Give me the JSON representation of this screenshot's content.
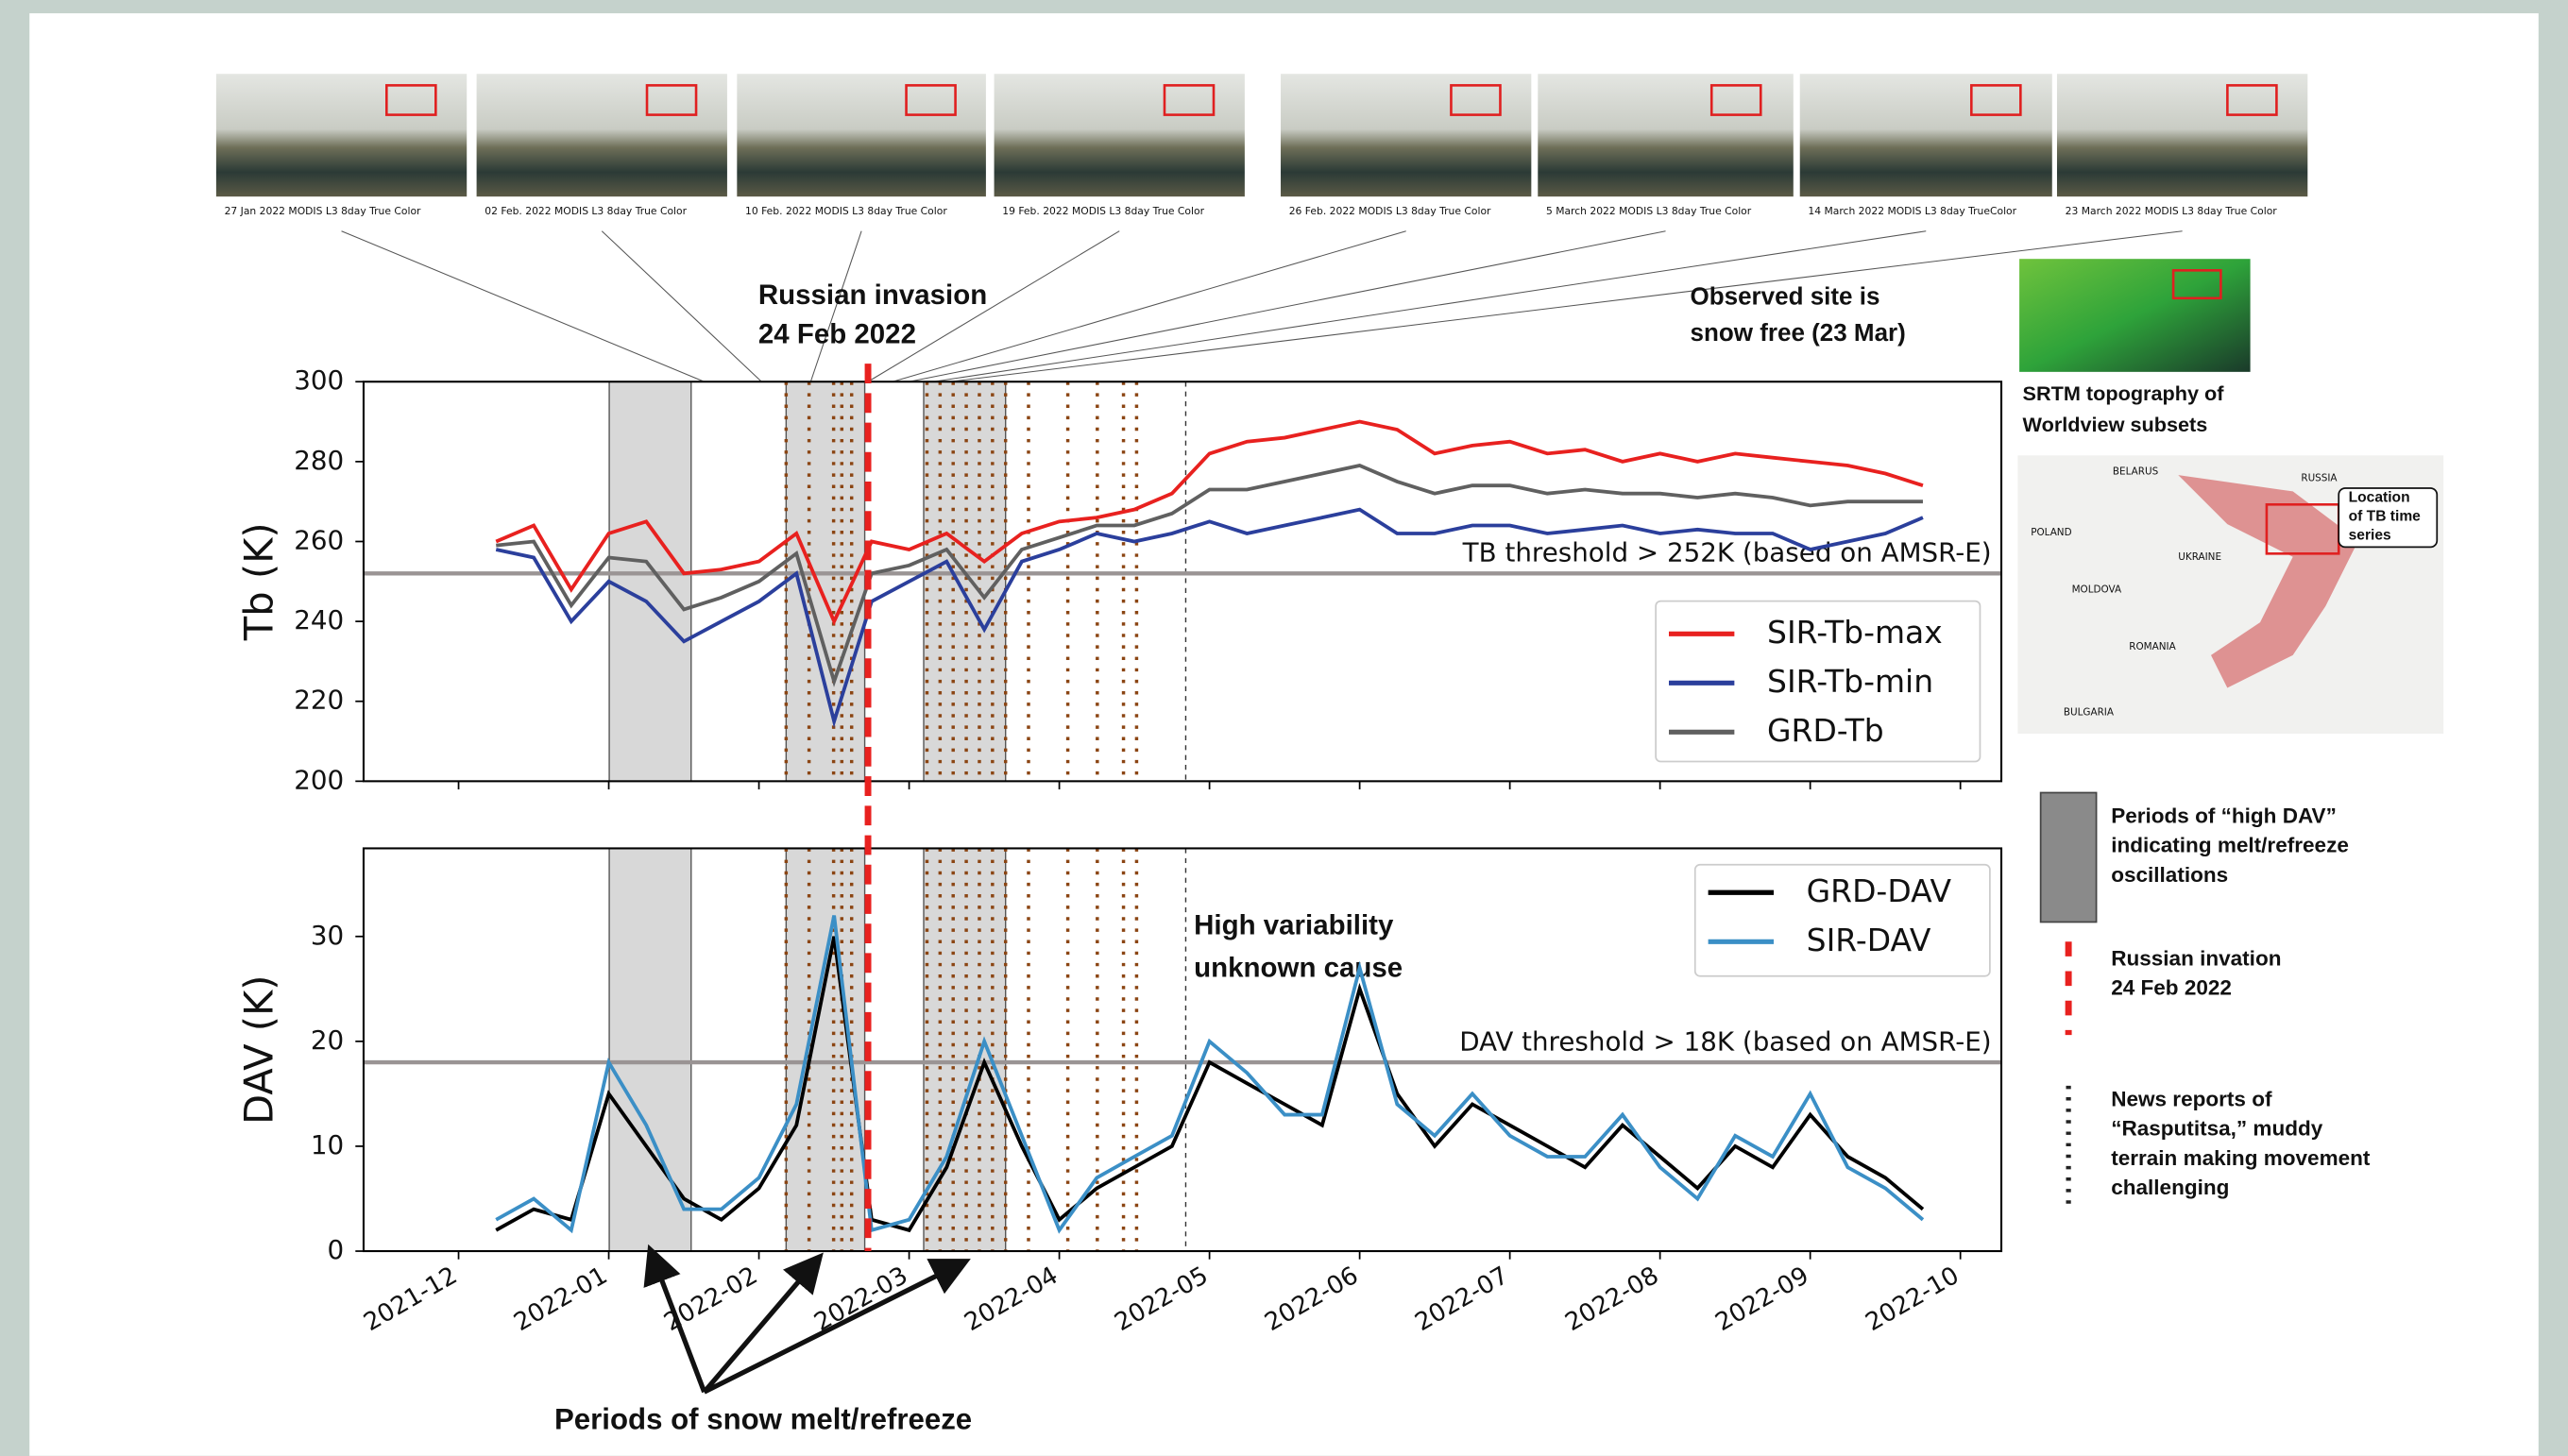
{
  "figure": {
    "thumbnails": [
      "27 Jan 2022 MODIS L3 8day True Color",
      "02 Feb. 2022 MODIS L3 8day True Color",
      "10 Feb. 2022 MODIS L3 8day True Color",
      "19 Feb. 2022 MODIS L3 8day True Color",
      "26 Feb. 2022 MODIS L3 8day True Color",
      "5 March 2022 MODIS L3 8day True Color",
      "14  March 2022 MODIS L3 8day TrueColor",
      "23  March 2022 MODIS L3 8day True Color"
    ],
    "invasion": [
      "Russian invasion",
      "24 Feb 2022"
    ],
    "observed": [
      "Observed site is",
      "snow free (23 Mar)"
    ],
    "variability": [
      "High variability",
      "unknown cause"
    ],
    "srtm_caption": [
      "SRTM topography of",
      "Worldview subsets"
    ],
    "map": {
      "labels": [
        "RUSSIA",
        "BELARUS",
        "POLAND",
        "UKRAINE",
        "ROMANIA",
        "MOLDOVA",
        "BULGARIA"
      ],
      "location": [
        "Location",
        "of TB time",
        "series"
      ]
    },
    "key": {
      "dav": [
        "Periods of “high DAV”",
        "indicating melt/refreeze",
        "oscillations"
      ],
      "invasion": [
        "Russian invation",
        "24 Feb 2022"
      ],
      "news": [
        "News reports of",
        "“Rasputitsa,” muddy",
        "terrain making movement",
        "challenging"
      ]
    },
    "bottom_label": "Periods of snow melt/refreeze"
  },
  "chart_data": [
    {
      "type": "line",
      "ylabel": "Tb (K)",
      "ylim": [
        200,
        300
      ],
      "yticks": [
        200,
        220,
        240,
        260,
        280,
        300
      ],
      "threshold": {
        "value": 252,
        "label": "TB threshold > 252K (based on AMSR-E)"
      },
      "series": [
        {
          "name": "SIR-Tb-max",
          "color": "#e8211f",
          "values": [
            null,
            260,
            264,
            248,
            262,
            265,
            252,
            253,
            255,
            262,
            240,
            260,
            258,
            262,
            255,
            262,
            265,
            266,
            268,
            272,
            282,
            285,
            286,
            288,
            290,
            288,
            282,
            284,
            285,
            282,
            283,
            280,
            282,
            280,
            282,
            281,
            280,
            279,
            277,
            274,
            null
          ]
        },
        {
          "name": "SIR-Tb-min",
          "color": "#2b3f9c",
          "values": [
            null,
            258,
            256,
            240,
            250,
            245,
            235,
            240,
            245,
            252,
            215,
            245,
            250,
            255,
            238,
            255,
            258,
            262,
            260,
            262,
            265,
            262,
            264,
            266,
            268,
            262,
            262,
            264,
            264,
            262,
            263,
            264,
            262,
            263,
            262,
            262,
            258,
            260,
            262,
            266,
            null
          ]
        },
        {
          "name": "GRD-Tb",
          "color": "#606060",
          "values": [
            null,
            259,
            260,
            244,
            256,
            255,
            243,
            246,
            250,
            257,
            225,
            252,
            254,
            258,
            246,
            258,
            261,
            264,
            264,
            267,
            273,
            273,
            275,
            277,
            279,
            275,
            272,
            274,
            274,
            272,
            273,
            272,
            272,
            271,
            272,
            271,
            269,
            270,
            270,
            270,
            null
          ]
        }
      ]
    },
    {
      "type": "line",
      "ylabel": "DAV (K)",
      "ylim": [
        0,
        38.4
      ],
      "yticks": [
        0,
        10,
        20,
        30
      ],
      "categories": [
        "2021-12",
        null,
        null,
        null,
        "2022-01",
        null,
        null,
        null,
        "2022-02",
        null,
        null,
        null,
        "2022-03",
        null,
        null,
        null,
        "2022-04",
        null,
        null,
        null,
        "2022-05",
        null,
        null,
        null,
        "2022-06",
        null,
        null,
        null,
        "2022-07",
        null,
        null,
        null,
        "2022-08",
        null,
        null,
        null,
        "2022-09",
        null,
        null,
        null,
        "2022-10"
      ],
      "threshold": {
        "value": 18,
        "label": "DAV threshold > 18K (based on AMSR-E)"
      },
      "series": [
        {
          "name": "GRD-DAV",
          "color": "#000000",
          "values": [
            null,
            2,
            4,
            3,
            15,
            10,
            5,
            3,
            6,
            12,
            30,
            3,
            2,
            8,
            18,
            10,
            3,
            6,
            8,
            10,
            18,
            16,
            14,
            12,
            25,
            15,
            10,
            14,
            12,
            10,
            8,
            12,
            9,
            6,
            10,
            8,
            13,
            9,
            7,
            4,
            null
          ]
        },
        {
          "name": "SIR-DAV",
          "color": "#3b8fc6",
          "values": [
            null,
            3,
            5,
            2,
            18,
            12,
            4,
            4,
            7,
            14,
            32,
            2,
            3,
            9,
            20,
            11,
            2,
            7,
            9,
            11,
            20,
            17,
            13,
            13,
            27,
            14,
            11,
            15,
            11,
            9,
            9,
            13,
            8,
            5,
            11,
            9,
            15,
            8,
            6,
            3,
            null
          ]
        }
      ]
    }
  ]
}
